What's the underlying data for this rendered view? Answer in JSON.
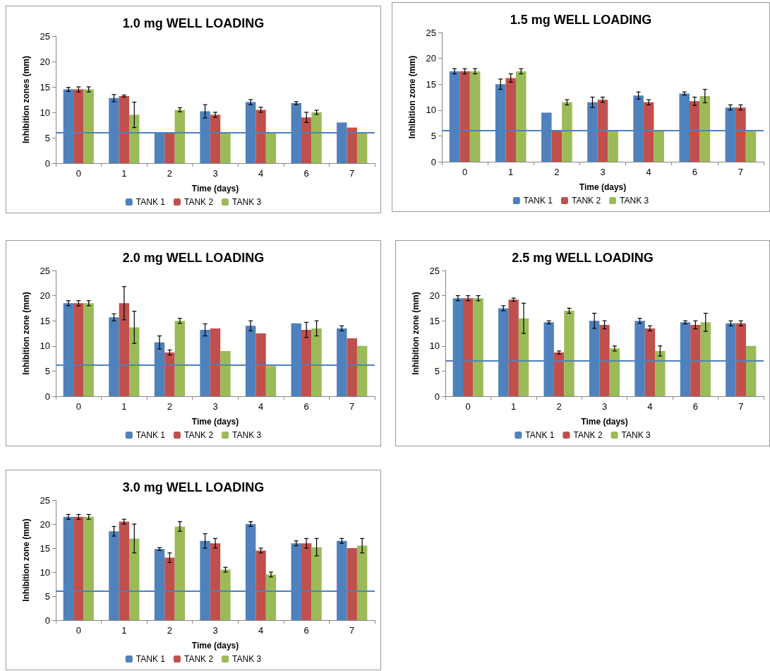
{
  "chart_data": [
    {
      "type": "bar",
      "title": "1.0 mg WELL LOADING",
      "xlabel": "Time (days)",
      "ylabel": "Inhibition zones (mm)",
      "categories": [
        "0",
        "1",
        "2",
        "3",
        "4",
        "6",
        "7"
      ],
      "ylim": [
        0,
        25
      ],
      "yticks": [
        0,
        5,
        10,
        15,
        20,
        25
      ],
      "grid": false,
      "legend": "bottom",
      "series": [
        {
          "name": "TANK 1",
          "color": "#4f81bd",
          "values": [
            14.5,
            12.8,
            6,
            10.2,
            12,
            11.8,
            8
          ],
          "errors": [
            0.4,
            0.7,
            null,
            1.3,
            0.5,
            0.3,
            null
          ]
        },
        {
          "name": "TANK 2",
          "color": "#c0504d",
          "values": [
            14.5,
            13.2,
            6,
            9.5,
            10.5,
            9,
            7
          ],
          "errors": [
            0.5,
            0.2,
            null,
            0.5,
            0.5,
            1,
            null
          ]
        },
        {
          "name": "TANK 3",
          "color": "#9bbb59",
          "values": [
            14.5,
            9.5,
            10.5,
            6,
            6,
            10,
            6
          ],
          "errors": [
            0.5,
            2.5,
            0.4,
            null,
            null,
            0.4,
            null
          ]
        }
      ],
      "ref_lines": [
        {
          "axis": "y",
          "value": 6,
          "color": "#4f81bd"
        }
      ]
    },
    {
      "type": "bar",
      "title": "1.5 mg WELL LOADING",
      "xlabel": "Time (days)",
      "ylabel": "Inhibition zone (mm)",
      "categories": [
        "0",
        "1",
        "2",
        "3",
        "4",
        "6",
        "7"
      ],
      "ylim": [
        0,
        25
      ],
      "yticks": [
        0,
        5,
        10,
        15,
        20,
        25
      ],
      "grid": false,
      "legend": "bottom",
      "series": [
        {
          "name": "TANK 1",
          "color": "#4f81bd",
          "values": [
            17.5,
            15,
            9.5,
            11.5,
            12.8,
            13.2,
            10.5
          ],
          "errors": [
            0.5,
            1,
            null,
            1,
            0.7,
            0.3,
            0.5
          ]
        },
        {
          "name": "TANK 2",
          "color": "#c0504d",
          "values": [
            17.5,
            16.2,
            6,
            12,
            11.5,
            11.7,
            10.5
          ],
          "errors": [
            0.5,
            0.8,
            null,
            0.5,
            0.5,
            0.8,
            0.5
          ]
        },
        {
          "name": "TANK 3",
          "color": "#9bbb59",
          "values": [
            17.5,
            17.5,
            11.5,
            6,
            6,
            12.7,
            6
          ],
          "errors": [
            0.5,
            0.5,
            0.5,
            null,
            null,
            1.3,
            null
          ]
        }
      ],
      "ref_lines": [
        {
          "axis": "y",
          "value": 6.1,
          "color": "#4f81bd"
        }
      ]
    },
    {
      "type": "bar",
      "title": "2.0 mg WELL LOADING",
      "xlabel": "Time (days)",
      "ylabel": "Inhibition zone (mm)",
      "categories": [
        "0",
        "1",
        "2",
        "3",
        "4",
        "6",
        "7"
      ],
      "ylim": [
        0,
        25
      ],
      "yticks": [
        0,
        5,
        10,
        15,
        20,
        25
      ],
      "grid": false,
      "legend": "bottom",
      "series": [
        {
          "name": "TANK 1",
          "color": "#4f81bd",
          "values": [
            18.5,
            15.7,
            10.7,
            13.2,
            14,
            14.5,
            13.5
          ],
          "errors": [
            0.5,
            0.7,
            1.3,
            1.2,
            1,
            null,
            0.5
          ]
        },
        {
          "name": "TANK 2",
          "color": "#c0504d",
          "values": [
            18.5,
            18.5,
            8.7,
            13.5,
            12.5,
            13.2,
            11.5
          ],
          "errors": [
            0.5,
            3.3,
            0.5,
            null,
            null,
            1.5,
            null
          ]
        },
        {
          "name": "TANK 3",
          "color": "#9bbb59",
          "values": [
            18.5,
            13.7,
            15,
            9,
            6,
            13.5,
            10
          ],
          "errors": [
            0.5,
            3.2,
            0.5,
            null,
            null,
            1.5,
            null
          ]
        }
      ],
      "ref_lines": [
        {
          "axis": "y",
          "value": 6.2,
          "color": "#4f81bd"
        }
      ]
    },
    {
      "type": "bar",
      "title": "2.5 mg WELL LOADING",
      "xlabel": "Time (days)",
      "ylabel": "Inhibition zone (mm)",
      "categories": [
        "0",
        "1",
        "2",
        "3",
        "4",
        "6",
        "7"
      ],
      "ylim": [
        0,
        25
      ],
      "yticks": [
        0,
        5,
        10,
        15,
        20,
        25
      ],
      "grid": false,
      "legend": "bottom",
      "series": [
        {
          "name": "TANK 1",
          "color": "#4f81bd",
          "values": [
            19.5,
            17.5,
            14.7,
            15,
            15,
            14.7,
            14.5
          ],
          "errors": [
            0.5,
            0.5,
            0.3,
            1.5,
            0.5,
            0.3,
            0.5
          ]
        },
        {
          "name": "TANK 2",
          "color": "#c0504d",
          "values": [
            19.5,
            19.2,
            8.7,
            14.2,
            13.5,
            14.2,
            14.5
          ],
          "errors": [
            0.5,
            0.3,
            0.3,
            0.8,
            0.5,
            0.8,
            0.5
          ]
        },
        {
          "name": "TANK 3",
          "color": "#9bbb59",
          "values": [
            19.5,
            15.5,
            17,
            9.5,
            9,
            14.7,
            10
          ],
          "errors": [
            0.5,
            3,
            0.5,
            0.5,
            1,
            1.8,
            null
          ]
        }
      ],
      "ref_lines": [
        {
          "axis": "y",
          "value": 7,
          "color": "#4f81bd"
        }
      ]
    },
    {
      "type": "bar",
      "title": "3.0 mg WELL LOADING",
      "xlabel": "Time (days)",
      "ylabel": "Inhibition zone (mm)",
      "categories": [
        "0",
        "1",
        "2",
        "3",
        "4",
        "6",
        "7"
      ],
      "ylim": [
        0,
        25
      ],
      "yticks": [
        0,
        5,
        10,
        15,
        20,
        25
      ],
      "grid": false,
      "legend": "bottom",
      "series": [
        {
          "name": "TANK 1",
          "color": "#4f81bd",
          "values": [
            21.5,
            18.5,
            14.8,
            16.5,
            20,
            16,
            16.5
          ],
          "errors": [
            0.5,
            1,
            0.3,
            1.5,
            0.5,
            0.5,
            0.5
          ]
        },
        {
          "name": "TANK 2",
          "color": "#c0504d",
          "values": [
            21.5,
            20.5,
            13,
            16,
            14.5,
            16,
            15
          ],
          "errors": [
            0.5,
            0.5,
            1,
            1,
            0.5,
            1,
            null
          ]
        },
        {
          "name": "TANK 3",
          "color": "#9bbb59",
          "values": [
            21.5,
            17,
            19.5,
            10.5,
            9.5,
            15.2,
            15.5
          ],
          "errors": [
            0.5,
            3,
            1,
            0.5,
            0.5,
            1.8,
            1.5
          ]
        }
      ],
      "ref_lines": [
        {
          "axis": "y",
          "value": 6,
          "color": "#4f81bd"
        }
      ]
    }
  ]
}
